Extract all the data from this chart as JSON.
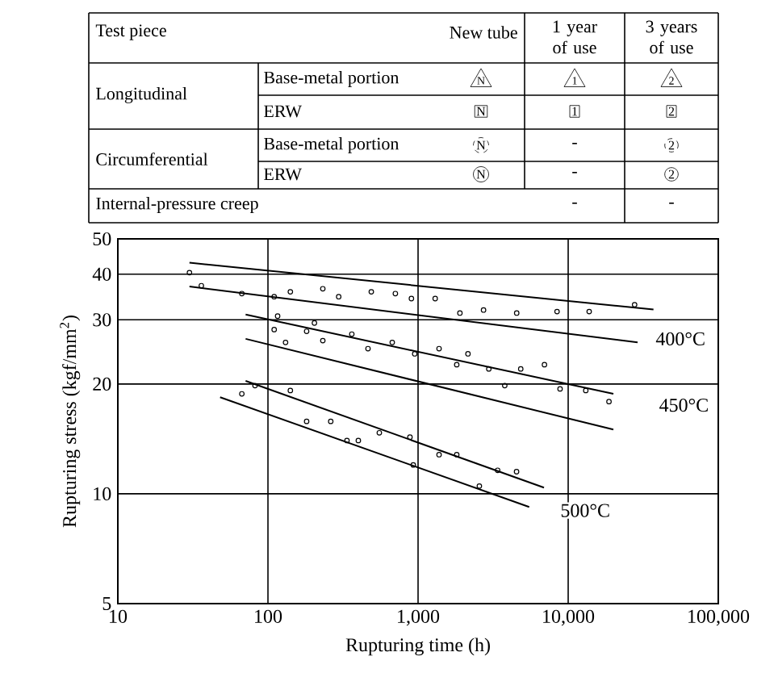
{
  "chart_data": {
    "type": "scatter",
    "xlabel": "Rupturing time (h)",
    "ylabel": "Rupturing stress (kgf/mm$^{2}$)",
    "log": "xy",
    "grid": true,
    "xlim": [
      10,
      100000
    ],
    "ylim": [
      5,
      50
    ],
    "xticks": [
      {
        "value": 10,
        "label": "10"
      },
      {
        "value": 100,
        "label": "100"
      },
      {
        "value": 1000,
        "label": "1,000"
      },
      {
        "value": 10000,
        "label": "10,000"
      },
      {
        "value": 100000,
        "label": "100,000"
      }
    ],
    "yticks": [
      5,
      10,
      20,
      30,
      40,
      50
    ],
    "series": [
      {
        "marker": "circle",
        "color": "#000000",
        "x": [
          30,
          36,
          67,
          110,
          141,
          232,
          296,
          488,
          706,
          903,
          1300,
          1900,
          2730,
          4540,
          8430,
          13800,
          27700
        ],
        "values": [
          40.4,
          37.2,
          35.4,
          34.7,
          35.8,
          36.5,
          34.7,
          35.8,
          35.4,
          34.3,
          34.3,
          31.3,
          31.9,
          31.3,
          31.6,
          31.6,
          33.0
        ]
      },
      {
        "marker": "circle",
        "color": "#000000",
        "x": [
          116,
          110,
          131,
          181,
          204,
          232,
          362,
          464,
          673,
          950,
          1380,
          1810,
          2150,
          2960,
          3780,
          4830,
          6950,
          8830,
          13100,
          18700
        ],
        "values": [
          30.7,
          28.2,
          26.0,
          27.9,
          29.4,
          26.3,
          27.4,
          25.0,
          26.0,
          24.2,
          25.0,
          22.6,
          24.2,
          22.0,
          19.8,
          22.0,
          22.6,
          19.4,
          19.2,
          17.9
        ]
      },
      {
        "marker": "circle",
        "color": "#000000",
        "x": [
          67,
          82,
          141,
          181,
          262,
          336,
          400,
          552,
          883,
          929,
          1380,
          1810,
          2560,
          3390,
          4530
        ],
        "values": [
          18.8,
          19.8,
          19.2,
          15.8,
          15.8,
          14.0,
          14.0,
          14.7,
          14.3,
          12.0,
          12.8,
          12.8,
          10.5,
          11.6,
          11.5
        ]
      },
      {
        "type": "line",
        "color": "#000000",
        "x": [
          30,
          37000
        ],
        "values": [
          43,
          32
        ]
      },
      {
        "type": "line",
        "color": "#000000",
        "x": [
          30,
          29000
        ],
        "values": [
          37,
          26
        ]
      },
      {
        "type": "line",
        "color": "#000000",
        "x": [
          71,
          20000
        ],
        "values": [
          31,
          18.8
        ]
      },
      {
        "type": "line",
        "color": "#000000",
        "x": [
          71,
          20000
        ],
        "values": [
          26.6,
          15.0
        ]
      },
      {
        "type": "line",
        "color": "#000000",
        "x": [
          71,
          6900
        ],
        "values": [
          20.4,
          10.4
        ]
      },
      {
        "type": "line",
        "color": "#000000",
        "x": [
          48,
          5500
        ],
        "values": [
          18.4,
          9.2
        ]
      }
    ],
    "annotations": [
      "Test piece",
      "New tube",
      "1 year of use",
      "3 years of use",
      "Longitudinal",
      "Base-metal portion",
      "ERW",
      "Circumferential",
      "Base-metal portion",
      "ERW",
      "Internal-pressure creep",
      "N",
      "1",
      "2",
      "N",
      "1",
      "2",
      "N",
      "-",
      "2",
      "N",
      "-",
      "2",
      "-",
      "-",
      {
        "text": "400°C",
        "x": 56000,
        "y": 26.6
      },
      {
        "text": "450°C",
        "x": 59000,
        "y": 17.5
      },
      {
        "text": "500°C",
        "x": 13000,
        "y": 9.0
      }
    ]
  }
}
